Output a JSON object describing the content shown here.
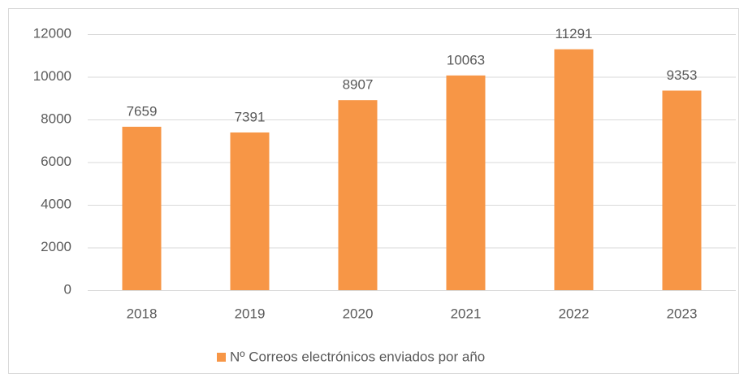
{
  "chart_data": {
    "type": "bar",
    "categories": [
      "2018",
      "2019",
      "2020",
      "2021",
      "2022",
      "2023"
    ],
    "series": [
      {
        "name": "Nº Correos electrónicos enviados por año",
        "color": "#f79646",
        "values": [
          7659,
          7391,
          8907,
          10063,
          11291,
          9353
        ]
      }
    ],
    "ylim": [
      0,
      12000
    ],
    "yticks": [
      0,
      2000,
      4000,
      6000,
      8000,
      10000,
      12000
    ],
    "grid": true,
    "legend": "bottom",
    "data_labels": true
  }
}
